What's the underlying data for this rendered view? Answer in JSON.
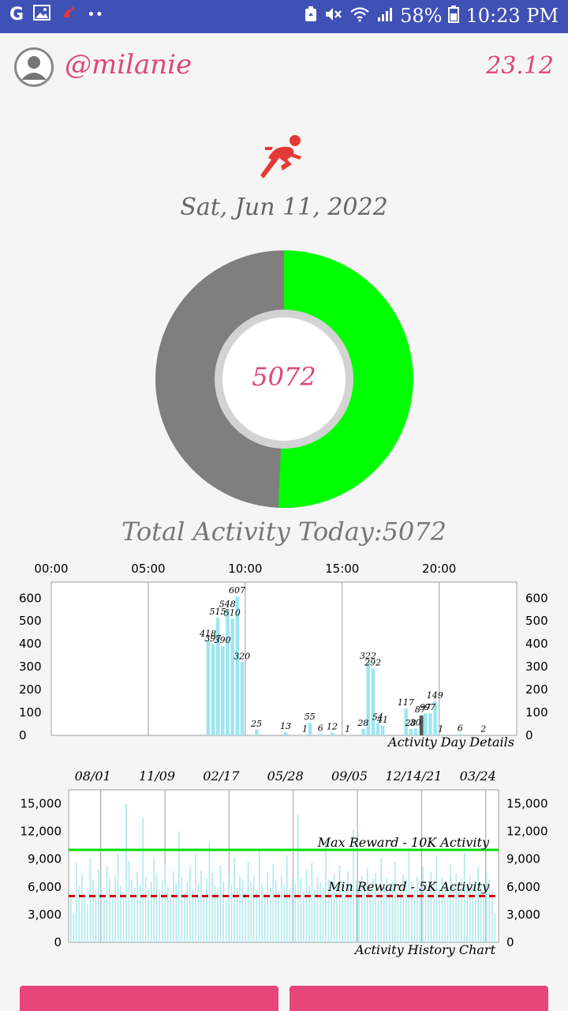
{
  "status_bar": {
    "battery": "58%",
    "time": "10:23 PM",
    "left_icons": [
      "google-icon",
      "image-icon",
      "app-icon",
      "more-icon"
    ],
    "right_icons": [
      "recycle-icon",
      "mute-icon",
      "wifi-icon",
      "signal-icon",
      "battery-icon"
    ]
  },
  "header": {
    "username": "@milanie",
    "score": "23.12"
  },
  "activity": {
    "date": "Sat, Jun 11, 2022",
    "center_value": "5072",
    "total_label": "Total Activity Today:5072",
    "donut": {
      "progress_fraction": 0.507,
      "progress_color": "#00ff00",
      "remaining_color": "#7f7f7f"
    }
  },
  "day_chart": {
    "caption": "Activity Day Details",
    "top_ticks": [
      "00:00",
      "05:00",
      "10:00",
      "15:00",
      "20:00"
    ],
    "y_ticks": [
      "600",
      "500",
      "400",
      "300",
      "200",
      "100",
      "0"
    ]
  },
  "history_chart": {
    "caption": "Activity History Chart",
    "top_ticks": [
      "08/01",
      "11/09",
      "02/17",
      "05/28",
      "09/05",
      "12/14/21",
      "03/24"
    ],
    "y_ticks": [
      "15,000",
      "12,000",
      "9,000",
      "6,000",
      "3,000",
      "0"
    ],
    "max_label": "Max Reward - 10K Activity",
    "min_label": "Min Reward - 5K Activity"
  },
  "chart_data": [
    {
      "type": "bar",
      "title": "Activity Day Details",
      "x_unit": "hour of day",
      "xlim": [
        0,
        24
      ],
      "ylim": [
        0,
        670
      ],
      "points": [
        {
          "x": 8.0,
          "y": 418,
          "label": "418"
        },
        {
          "x": 8.25,
          "y": 397,
          "label": "397"
        },
        {
          "x": 8.5,
          "y": 515,
          "label": "515"
        },
        {
          "x": 8.75,
          "y": 390,
          "label": "390"
        },
        {
          "x": 9.0,
          "y": 548,
          "label": "548"
        },
        {
          "x": 9.25,
          "y": 510,
          "label": "510"
        },
        {
          "x": 9.5,
          "y": 607,
          "label": "607"
        },
        {
          "x": 9.75,
          "y": 320,
          "label": "320"
        },
        {
          "x": 10.5,
          "y": 25,
          "label": "25"
        },
        {
          "x": 12.0,
          "y": 13,
          "label": "13"
        },
        {
          "x": 13.0,
          "y": 1,
          "label": "1"
        },
        {
          "x": 13.25,
          "y": 55,
          "label": "55"
        },
        {
          "x": 13.8,
          "y": 6,
          "label": "6"
        },
        {
          "x": 14.4,
          "y": 12,
          "label": "12"
        },
        {
          "x": 15.2,
          "y": 1,
          "label": "1"
        },
        {
          "x": 16.0,
          "y": 28,
          "label": "28"
        },
        {
          "x": 16.25,
          "y": 322,
          "label": "322"
        },
        {
          "x": 16.5,
          "y": 292,
          "label": "292"
        },
        {
          "x": 16.75,
          "y": 54,
          "label": "54"
        },
        {
          "x": 17.0,
          "y": 41,
          "label": "41"
        },
        {
          "x": 18.2,
          "y": 117,
          "label": "117"
        },
        {
          "x": 18.45,
          "y": 28,
          "label": "28"
        },
        {
          "x": 18.7,
          "y": 30,
          "label": "30"
        },
        {
          "x": 18.95,
          "y": 87,
          "label": "87"
        },
        {
          "x": 19.2,
          "y": 97,
          "label": "97"
        },
        {
          "x": 19.45,
          "y": 97,
          "label": "97"
        },
        {
          "x": 19.7,
          "y": 149,
          "label": "149"
        },
        {
          "x": 20.0,
          "y": 1,
          "label": "1"
        },
        {
          "x": 21.0,
          "y": 6,
          "label": "6"
        },
        {
          "x": 22.2,
          "y": 2,
          "label": "2"
        }
      ]
    },
    {
      "type": "bar",
      "title": "Activity History Chart",
      "ylim": [
        0,
        16500
      ],
      "reference_lines": [
        {
          "name": "Max Reward - 10K Activity",
          "value": 10000,
          "color": "#00dd00",
          "style": "solid"
        },
        {
          "name": "Min Reward - 5K Activity",
          "value": 5000,
          "color": "#cc0000",
          "style": "dashed"
        }
      ],
      "series_color": "#aee8f0",
      "values": [
        4800,
        3200,
        8600,
        6100,
        7400,
        5200,
        4100,
        9100,
        6800,
        5600,
        7900,
        6300,
        5000,
        8200,
        6900,
        4700,
        7200,
        9600,
        6100,
        5400,
        15000,
        8800,
        6700,
        5900,
        7600,
        6200,
        13500,
        7100,
        5800,
        6600,
        9200,
        7300,
        5500,
        6800,
        8400,
        6000,
        4900,
        7700,
        6400,
        12000,
        7000,
        5300,
        6500,
        8100,
        5700,
        9600,
        6300,
        7800,
        5100,
        6900,
        10800,
        7500,
        6100,
        5800,
        8300,
        6600,
        4500,
        7400,
        6200,
        9200,
        5900,
        7100,
        6800,
        5400,
        8800,
        6500,
        7200,
        5600,
        9900,
        6400,
        5200,
        7600,
        6000,
        8500,
        6700,
        5500,
        7300,
        6100,
        9400,
        5800,
        7000,
        6300,
        13800,
        6900,
        5400,
        7800,
        6200,
        8600,
        5700,
        7100,
        6500,
        5900,
        10900,
        6800,
        5300,
        7400,
        6000,
        8300,
        6600,
        5100,
        7700,
        6400,
        12300,
        6700,
        5600,
        7200,
        6100,
        8000,
        5800,
        6900,
        7500,
        5500,
        9100,
        6300,
        7000,
        5900,
        6600,
        8700,
        6200,
        5400,
        7300,
        6800,
        10200,
        6500,
        5700,
        7100,
        6000,
        8200,
        6400,
        5200,
        7600,
        6700,
        9300,
        5600,
        7000,
        6100,
        5800,
        8400,
        6300,
        7400,
        5500,
        6900,
        9700,
        6000,
        7200,
        5900,
        6600,
        8100,
        6200,
        5300,
        7500,
        6800,
        5700,
        3100
      ]
    }
  ]
}
